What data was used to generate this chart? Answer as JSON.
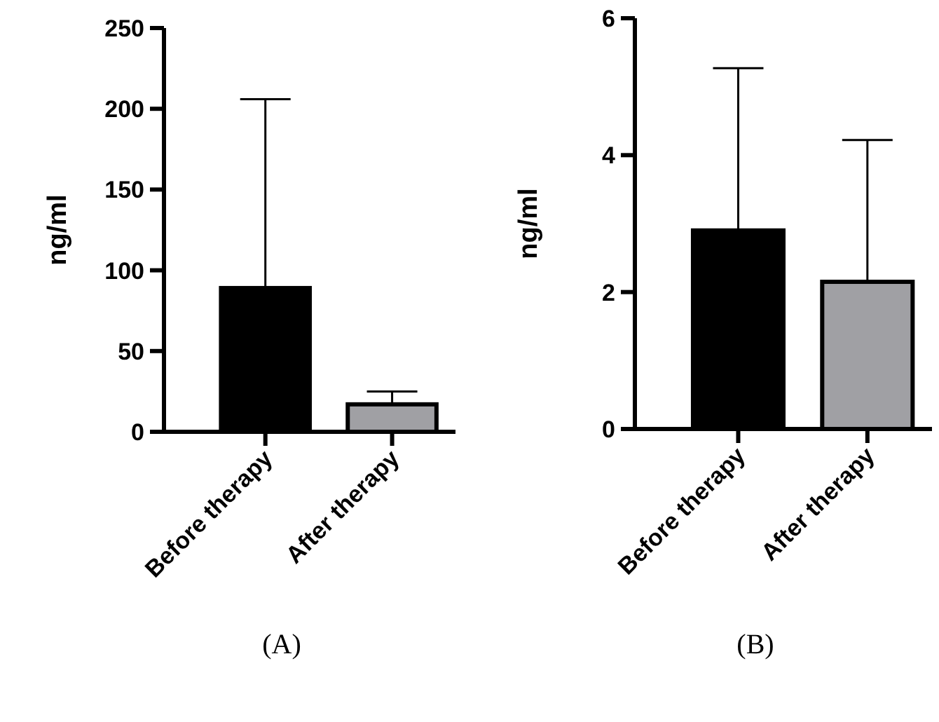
{
  "chart_data": [
    {
      "type": "bar",
      "title": "(A)",
      "ylabel": "ng/ml",
      "categories": [
        "Before therapy",
        "After therapy"
      ],
      "values": [
        89,
        17
      ],
      "errors": [
        117,
        8
      ],
      "colors": [
        "#000000",
        "#a0a0a4"
      ],
      "ylim": [
        0,
        250
      ],
      "yticks": [
        0,
        50,
        100,
        150,
        200,
        250
      ],
      "grid": false
    },
    {
      "type": "bar",
      "title": "(B)",
      "ylabel": "ng/ml",
      "categories": [
        "Before therapy",
        "After therapy"
      ],
      "values": [
        2.9,
        2.15
      ],
      "errors": [
        2.37,
        2.07
      ],
      "colors": [
        "#000000",
        "#a0a0a4"
      ],
      "ylim": [
        0,
        6
      ],
      "yticks": [
        0,
        2,
        4,
        6
      ],
      "grid": false
    }
  ]
}
